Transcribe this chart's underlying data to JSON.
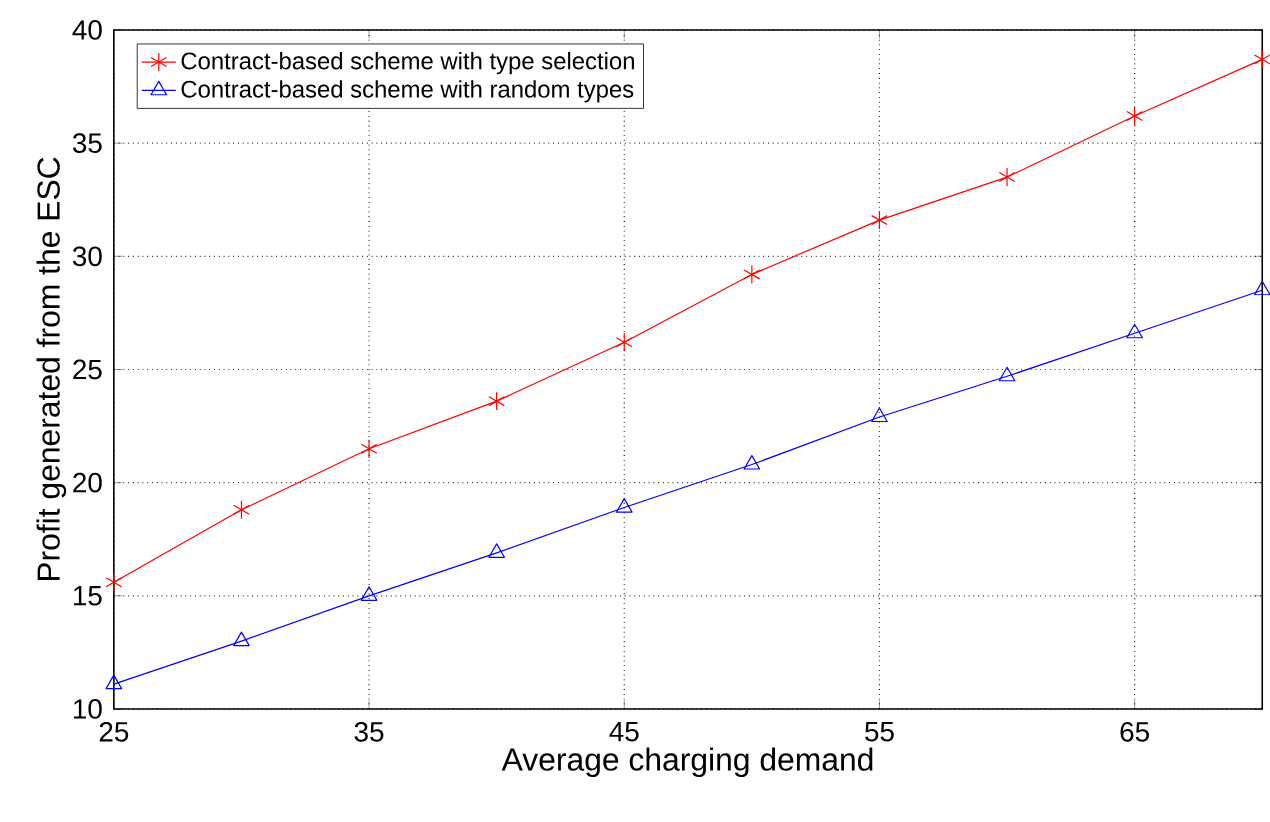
{
  "chart_data": {
    "type": "line",
    "xlabel": "Average charging demand",
    "ylabel": "Profit generated from the ESC",
    "x": [
      25,
      30,
      35,
      40,
      45,
      50,
      55,
      60,
      65,
      70
    ],
    "series": [
      {
        "name": "Contract-based scheme with type selection",
        "color": "#ff0000",
        "marker": "cross",
        "values": [
          15.6,
          18.8,
          21.5,
          23.6,
          26.2,
          29.2,
          31.6,
          33.5,
          36.2,
          38.7
        ]
      },
      {
        "name": "Contract-based scheme with random types",
        "color": "#0000ff",
        "marker": "triangle",
        "values": [
          11.1,
          13.0,
          15.0,
          16.9,
          18.9,
          20.8,
          22.9,
          24.7,
          26.6,
          28.5
        ]
      }
    ],
    "xlim": [
      25,
      70
    ],
    "ylim": [
      10,
      40
    ],
    "xticks": [
      25,
      35,
      45,
      55,
      65
    ],
    "yticks": [
      10,
      15,
      20,
      25,
      30,
      35,
      40
    ],
    "grid": true,
    "legend": "top left",
    "line_style": "solid"
  }
}
